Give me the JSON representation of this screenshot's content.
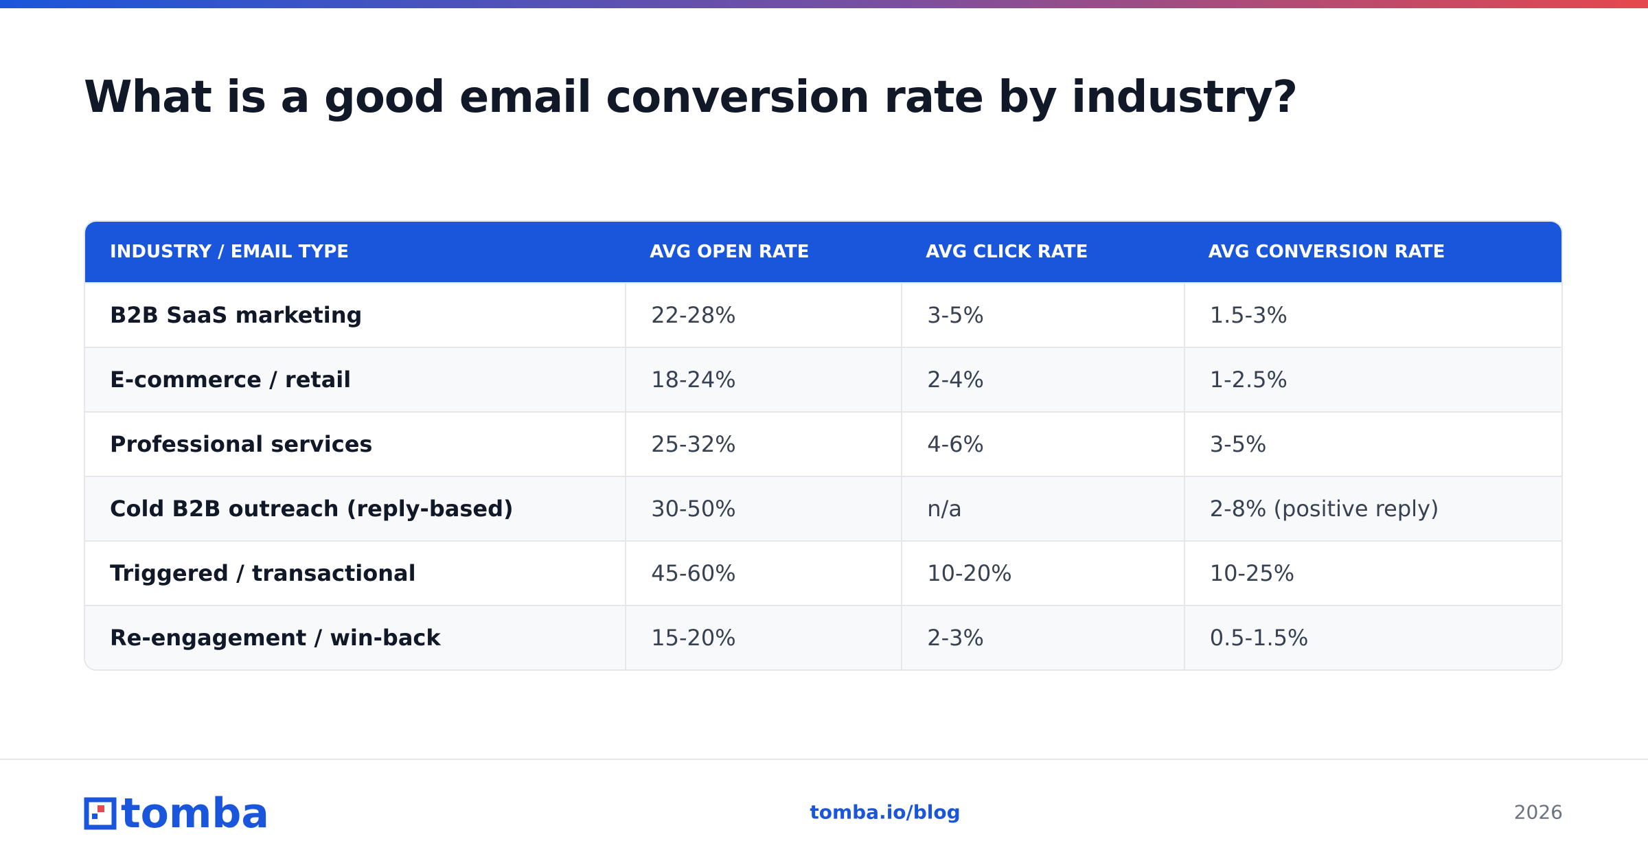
{
  "title": "What is a good email conversion rate by industry?",
  "table": {
    "headers": [
      "INDUSTRY / EMAIL TYPE",
      "AVG OPEN RATE",
      "AVG CLICK RATE",
      "AVG CONVERSION RATE"
    ],
    "rows": [
      [
        "B2B SaaS marketing",
        "22-28%",
        "3-5%",
        "1.5-3%"
      ],
      [
        "E-commerce / retail",
        "18-24%",
        "2-4%",
        "1-2.5%"
      ],
      [
        "Professional services",
        "25-32%",
        "4-6%",
        "3-5%"
      ],
      [
        "Cold B2B outreach (reply-based)",
        "30-50%",
        "n/a",
        "2-8% (positive reply)"
      ],
      [
        "Triggered / transactional",
        "45-60%",
        "10-20%",
        "10-25%"
      ],
      [
        "Re-engagement / win-back",
        "15-20%",
        "2-3%",
        "0.5-1.5%"
      ]
    ]
  },
  "footer": {
    "logo": "tomba",
    "url": "tomba.io/blog",
    "year": "2026"
  }
}
